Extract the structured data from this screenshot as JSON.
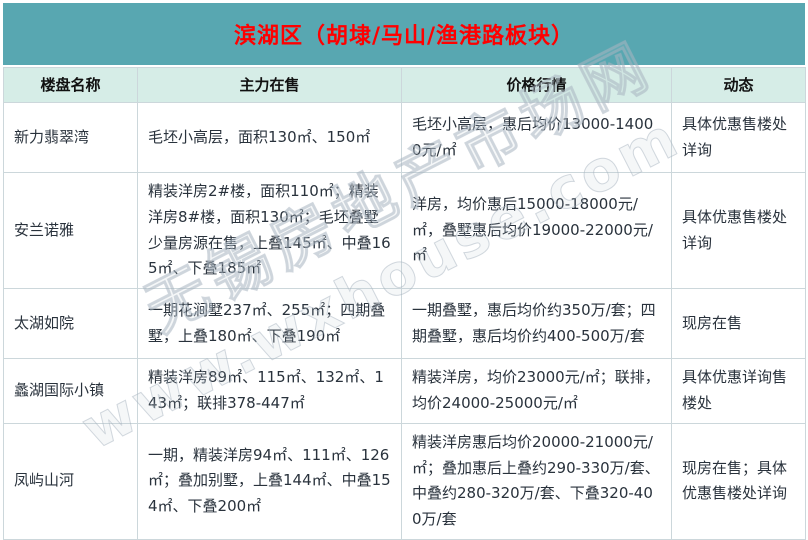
{
  "title": "滨湖区（胡埭/马山/渔港路板块）",
  "columns": {
    "name": "楼盘名称",
    "selling": "主力在售",
    "price": "价格行情",
    "status": "动态"
  },
  "rows": [
    {
      "name": "新力翡翠湾",
      "selling": "毛坯小高层，面积130㎡、150㎡",
      "price": "毛坯小高层，惠后均价13000-14000元/㎡",
      "status": "具体优惠售楼处详询"
    },
    {
      "name": "安兰诺雅",
      "selling": "精装洋房2#楼，面积110㎡；精装洋房8#楼，面积130㎡；毛坯叠墅少量房源在售，上叠145㎡、中叠165㎡、下叠185㎡",
      "price": "洋房，均价惠后15000-18000元/㎡，叠墅惠后均价19000-22000元/㎡",
      "status": "具体优惠售楼处详询"
    },
    {
      "name": "太湖如院",
      "selling": "一期花涧墅237㎡、255㎡；四期叠墅，上叠180㎡、下叠190㎡",
      "price": "一期叠墅，惠后均价约350万/套；四期叠墅，惠后均价约400-500万/套",
      "status": "现房在售"
    },
    {
      "name": "蠡湖国际小镇",
      "selling": "精装洋房89㎡、115㎡、132㎡、143㎡；联排378-447㎡",
      "price": "精装洋房，均价23000元/㎡；联排，均价24000-25000元/㎡",
      "status": "具体优惠详询售楼处"
    },
    {
      "name": "凤屿山河",
      "selling": "一期，精装洋房94㎡、111㎡、126㎡；叠加别墅，上叠144㎡、中叠154㎡、下叠200㎡",
      "price": "精装洋房惠后均价20000-21000元/㎡；叠加惠后上叠约290-330万/套、中叠约280-320万/套、下叠320-400万/套",
      "status": "现房在售；具体优惠售楼处详询"
    }
  ],
  "watermark": {
    "line1": "无锡房地产市场网",
    "line2": "www.wxhouse.com"
  },
  "colors": {
    "title_band_bg": "#58a7b1",
    "title_text": "#ff0000",
    "header_row_bg": "#d6ede7",
    "cell_text": "#29323c",
    "grid_border": "#ccd7db",
    "watermark": "#b9c4d0"
  }
}
